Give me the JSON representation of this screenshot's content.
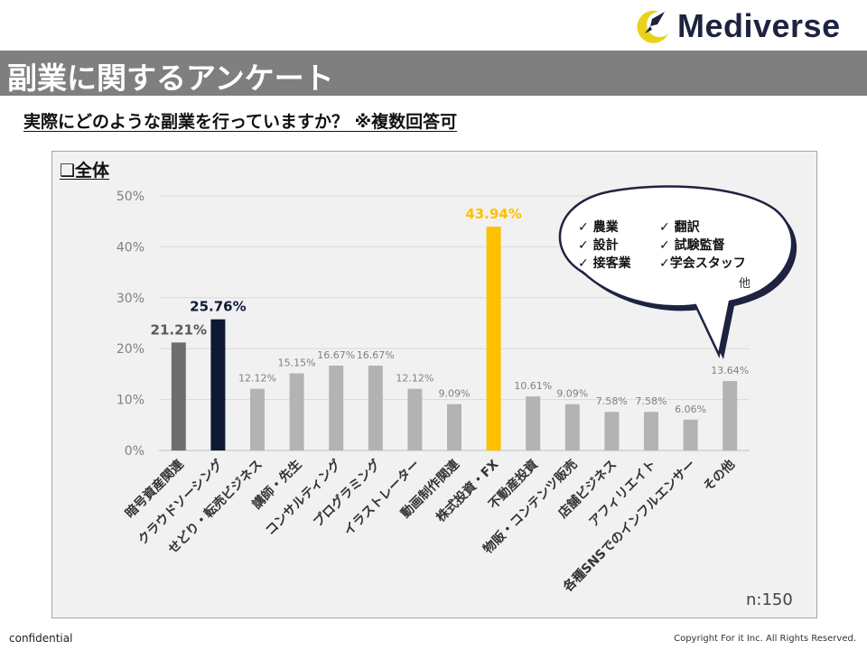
{
  "brand": {
    "name": "Mediverse",
    "logo_icon": "crescent-rocket-icon"
  },
  "header": {
    "title": "副業に関するアンケート",
    "question": "実際にどのような副業を行っていますか？ ※複数回答可"
  },
  "panel": {
    "label": "❑全体",
    "sample_size": "n:150"
  },
  "callout": {
    "items": [
      "✓ 農業",
      "✓ 翻訳",
      "✓ 設計",
      "✓ 試験監督",
      "✓ 接客業",
      "✓学会スタッフ"
    ],
    "other": "他"
  },
  "footer": {
    "left": "confidential",
    "right": "Copyright For it Inc. All Rights Reserved."
  },
  "colors": {
    "dark_gray": "#6e6e6e",
    "navy": "#0e1a33",
    "light_gray": "#b3b3b3",
    "gold": "#ffc000"
  },
  "chart_data": {
    "type": "bar",
    "title": "全体",
    "xlabel": "",
    "ylabel": "",
    "ylim": [
      0,
      50
    ],
    "yticks": [
      "0%",
      "10%",
      "20%",
      "30%",
      "40%",
      "50%"
    ],
    "grid": true,
    "categories": [
      "暗号資産関連",
      "クラウドソーシング",
      "せどり・転売ビジネス",
      "講師・先生",
      "コンサルティング",
      "プログラミング",
      "イラストレーター",
      "動画制作関連",
      "株式投資・FX",
      "不動産投資",
      "物販・コンテンツ販売",
      "店舗ビジネス",
      "アフィリエイト",
      "各種SNSでのインフルエンサー",
      "その他"
    ],
    "values": [
      21.21,
      25.76,
      12.12,
      15.15,
      16.67,
      16.67,
      12.12,
      9.09,
      43.94,
      10.61,
      9.09,
      7.58,
      7.58,
      6.06,
      13.64
    ],
    "labels": [
      "21.21%",
      "25.76%",
      "12.12%",
      "15.15%",
      "16.67%",
      "16.67%",
      "12.12%",
      "9.09%",
      "43.94%",
      "10.61%",
      "9.09%",
      "7.58%",
      "7.58%",
      "6.06%",
      "13.64%"
    ],
    "bar_colors": [
      "#6e6e6e",
      "#0e1a33",
      "#b3b3b3",
      "#b3b3b3",
      "#b3b3b3",
      "#b3b3b3",
      "#b3b3b3",
      "#b3b3b3",
      "#ffc000",
      "#b3b3b3",
      "#b3b3b3",
      "#b3b3b3",
      "#b3b3b3",
      "#b3b3b3",
      "#b3b3b3"
    ],
    "label_colors": [
      "#595959",
      "#0e1a33",
      "#808080",
      "#808080",
      "#808080",
      "#808080",
      "#808080",
      "#808080",
      "#ffc000",
      "#808080",
      "#808080",
      "#808080",
      "#808080",
      "#808080",
      "#808080"
    ],
    "emphasized": [
      true,
      true,
      false,
      false,
      false,
      false,
      false,
      false,
      true,
      false,
      false,
      false,
      false,
      false,
      false
    ]
  }
}
